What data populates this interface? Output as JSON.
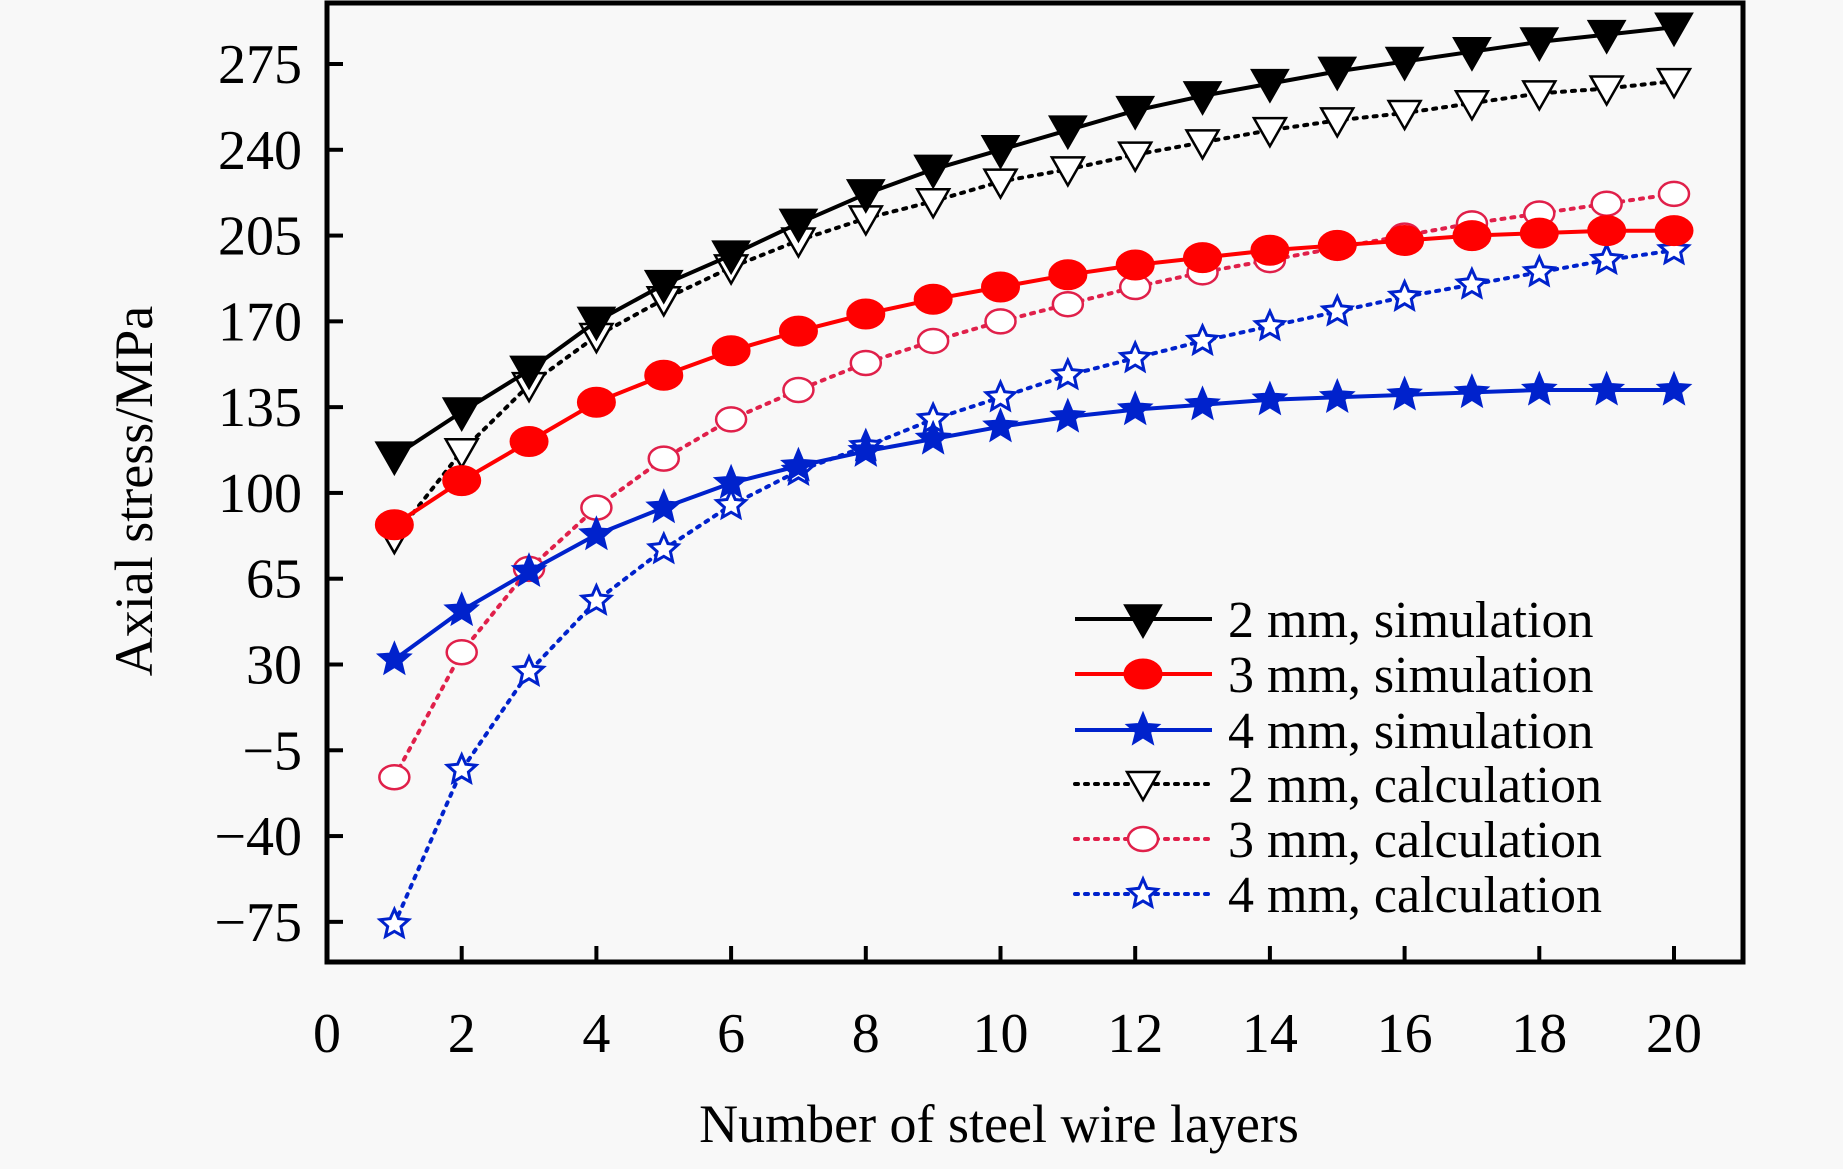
{
  "chart_data": {
    "type": "line",
    "title": "",
    "xlabel": "Number of steel wire layers",
    "ylabel": "Axial stress/MPa",
    "xlim": [
      0,
      21
    ],
    "ylim": [
      -75,
      295
    ],
    "xticks": [
      0,
      2,
      4,
      6,
      8,
      10,
      12,
      14,
      16,
      18,
      20
    ],
    "yticks": [
      -75,
      -40,
      -5,
      30,
      65,
      100,
      135,
      170,
      205,
      240,
      275
    ],
    "xtick_labels": [
      "0",
      "2",
      "4",
      "6",
      "8",
      "10",
      "12",
      "14",
      "16",
      "18",
      "20"
    ],
    "ytick_labels": [
      "−75",
      "−40",
      "−5",
      "30",
      "65",
      "100",
      "135",
      "170",
      "205",
      "240",
      "275"
    ],
    "grid": false,
    "legend_position": "bottom-right",
    "x": [
      1,
      2,
      3,
      4,
      5,
      6,
      7,
      8,
      9,
      10,
      11,
      12,
      13,
      14,
      15,
      16,
      17,
      18,
      19,
      20
    ],
    "series": [
      {
        "name": "2 mm, simulation",
        "color": "#000000",
        "style": "solid",
        "marker": "triangle-down-filled",
        "values": [
          115,
          133,
          150,
          170,
          185,
          197,
          210,
          222,
          232,
          240,
          248,
          256,
          262,
          267,
          272,
          276,
          280,
          284,
          287,
          290
        ]
      },
      {
        "name": "3 mm, simulation",
        "color": "#ff0000",
        "style": "solid",
        "marker": "circle-filled",
        "values": [
          87,
          105,
          121,
          137,
          148,
          158,
          166,
          173,
          179,
          184,
          189,
          193,
          196,
          199,
          201,
          203,
          205,
          206,
          207,
          207
        ]
      },
      {
        "name": "4 mm, simulation",
        "color": "#0022cc",
        "style": "solid",
        "marker": "star-filled",
        "values": [
          32,
          52,
          68,
          83,
          94,
          104,
          111,
          117,
          122,
          127,
          131,
          134,
          136,
          138,
          139,
          140,
          141,
          142,
          142,
          142
        ]
      },
      {
        "name": "2 mm, calculation",
        "color": "#000000",
        "style": "dotted",
        "marker": "triangle-down-open",
        "values": [
          82,
          117,
          144,
          164,
          179,
          192,
          203,
          212,
          219,
          227,
          232,
          238,
          243,
          248,
          252,
          255,
          259,
          263,
          265,
          268
        ]
      },
      {
        "name": "3 mm, calculation",
        "color": "#e0204a",
        "style": "dotted",
        "marker": "circle-open",
        "values": [
          -16,
          35,
          69,
          94,
          114,
          130,
          142,
          153,
          162,
          170,
          177,
          184,
          190,
          195,
          200,
          205,
          210,
          214,
          218,
          222
        ]
      },
      {
        "name": "4 mm, calculation",
        "color": "#0022cc",
        "style": "dotted",
        "marker": "star-open",
        "values": [
          -76,
          -13,
          27,
          56,
          77,
          95,
          109,
          119,
          130,
          139,
          148,
          155,
          162,
          168,
          174,
          180,
          185,
          190,
          195,
          199
        ]
      }
    ]
  }
}
